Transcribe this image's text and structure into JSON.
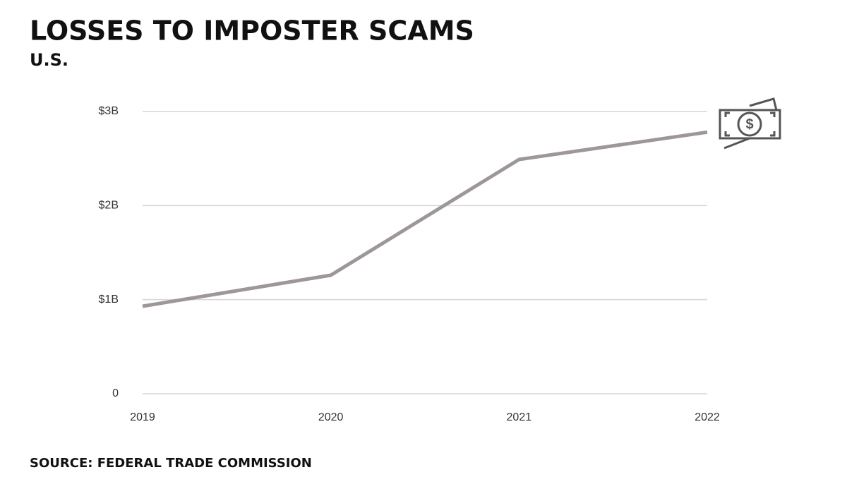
{
  "chart_data": {
    "type": "line",
    "title": "LOSSES TO IMPOSTER SCAMS",
    "subtitle": "U.S.",
    "source": "SOURCE: FEDERAL TRADE COMMISSION",
    "categories": [
      "2019",
      "2020",
      "2021",
      "2022"
    ],
    "series": [
      {
        "name": "Losses",
        "color": "#9e9799",
        "values": [
          0.93,
          1.26,
          2.49,
          2.78
        ]
      }
    ],
    "ylim": [
      0,
      3
    ],
    "yticks": [
      0,
      {
        "value": 1,
        "label": "$1B"
      },
      {
        "value": 2,
        "label": "$2B"
      },
      {
        "value": 3,
        "label": "$3B"
      }
    ],
    "grid": true
  }
}
